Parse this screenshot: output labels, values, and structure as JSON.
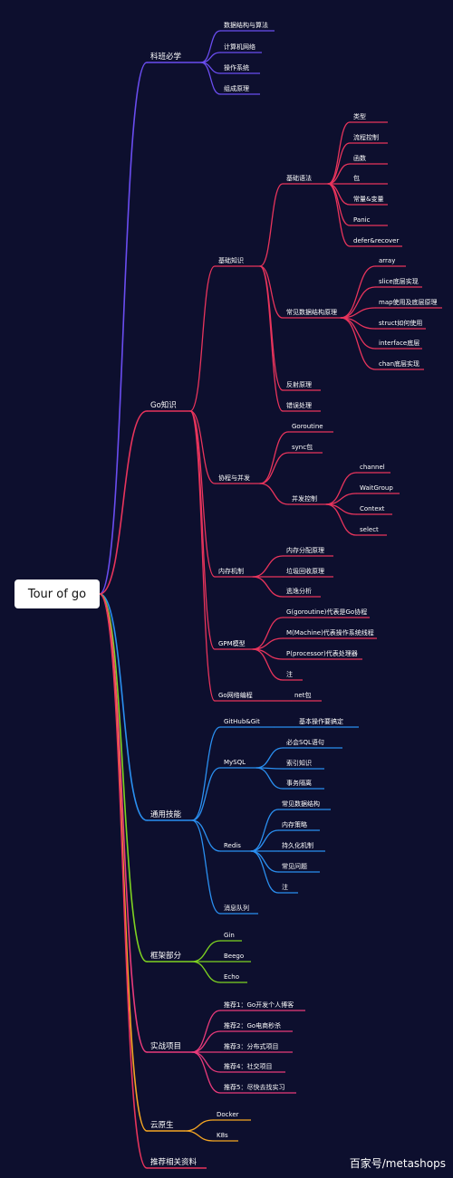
{
  "root": "Tour of go",
  "watermark": "百家号/metashops",
  "colors": {
    "background": "#0d0f2e",
    "purple": "#6a4df0",
    "red": "#e8345c",
    "blue": "#2a8ff0",
    "green": "#7ed321",
    "pink": "#e83a7a",
    "orange": "#f5a623"
  },
  "branches": {
    "cs": {
      "label": "科班必学",
      "color": "#6a4df0",
      "children": [
        {
          "label": "数据结构与算法"
        },
        {
          "label": "计算机网络"
        },
        {
          "label": "操作系统"
        },
        {
          "label": "组成原理"
        }
      ]
    },
    "go": {
      "label": "Go知识",
      "color": "#e8345c",
      "children": [
        {
          "label": "基础知识",
          "children": [
            {
              "label": "基础语法",
              "children": [
                {
                  "label": "类型"
                },
                {
                  "label": "流程控制"
                },
                {
                  "label": "函数"
                },
                {
                  "label": "包"
                },
                {
                  "label": "常量&变量"
                },
                {
                  "label": "Panic"
                },
                {
                  "label": "defer&recover"
                }
              ]
            },
            {
              "label": "常见数据结构原理",
              "children": [
                {
                  "label": "array"
                },
                {
                  "label": "slice底层实现"
                },
                {
                  "label": "map使用及底层原理"
                },
                {
                  "label": "struct如何使用"
                },
                {
                  "label": "interface底层"
                },
                {
                  "label": "chan底层实现"
                }
              ]
            },
            {
              "label": "反射原理"
            },
            {
              "label": "错误处理"
            }
          ]
        },
        {
          "label": "协程与并发",
          "children": [
            {
              "label": "Goroutine"
            },
            {
              "label": "sync包"
            },
            {
              "label": "并发控制",
              "children": [
                {
                  "label": "channel"
                },
                {
                  "label": "WaitGroup"
                },
                {
                  "label": "Context"
                },
                {
                  "label": "select"
                }
              ]
            }
          ]
        },
        {
          "label": "内存机制",
          "children": [
            {
              "label": "内存分配原理"
            },
            {
              "label": "垃圾回收原理"
            },
            {
              "label": "逃逸分析"
            }
          ]
        },
        {
          "label": "GPM模型",
          "children": [
            {
              "label": "G(goroutine)代表是Go协程"
            },
            {
              "label": "M(Machine)代表操作系统线程"
            },
            {
              "label": "P(processor)代表处理器"
            },
            {
              "label": "注"
            }
          ]
        },
        {
          "label": "Go网络编程",
          "children": [
            {
              "label": "net包"
            }
          ]
        }
      ]
    },
    "general": {
      "label": "通用技能",
      "color": "#2a8ff0",
      "children": [
        {
          "label": "GitHub&Git",
          "children": [
            {
              "label": "基本操作要搞定"
            }
          ]
        },
        {
          "label": "MySQL",
          "children": [
            {
              "label": "必会SQL语句"
            },
            {
              "label": "索引知识"
            },
            {
              "label": "事务隔离"
            }
          ]
        },
        {
          "label": "Redis",
          "children": [
            {
              "label": "常见数据结构"
            },
            {
              "label": "内存策略"
            },
            {
              "label": "持久化机制"
            },
            {
              "label": "常见问题"
            },
            {
              "label": "注"
            }
          ]
        },
        {
          "label": "消息队列"
        }
      ]
    },
    "framework": {
      "label": "框架部分",
      "color": "#7ed321",
      "children": [
        {
          "label": "Gin"
        },
        {
          "label": "Beego"
        },
        {
          "label": "Echo"
        }
      ]
    },
    "projects": {
      "label": "实战项目",
      "color": "#e83a7a",
      "children": [
        {
          "label": "推荐1：Go开发个人博客"
        },
        {
          "label": "推荐2：Go电商秒杀"
        },
        {
          "label": "推荐3：分布式项目"
        },
        {
          "label": "推荐4：社交项目"
        },
        {
          "label": "推荐5：尽快去找实习"
        }
      ]
    },
    "cloud": {
      "label": "云原生",
      "color": "#f5a623",
      "children": [
        {
          "label": "Docker"
        },
        {
          "label": "K8s"
        }
      ]
    },
    "resources": {
      "label": "推荐相关资料",
      "color": "#e8345c",
      "children": []
    }
  }
}
